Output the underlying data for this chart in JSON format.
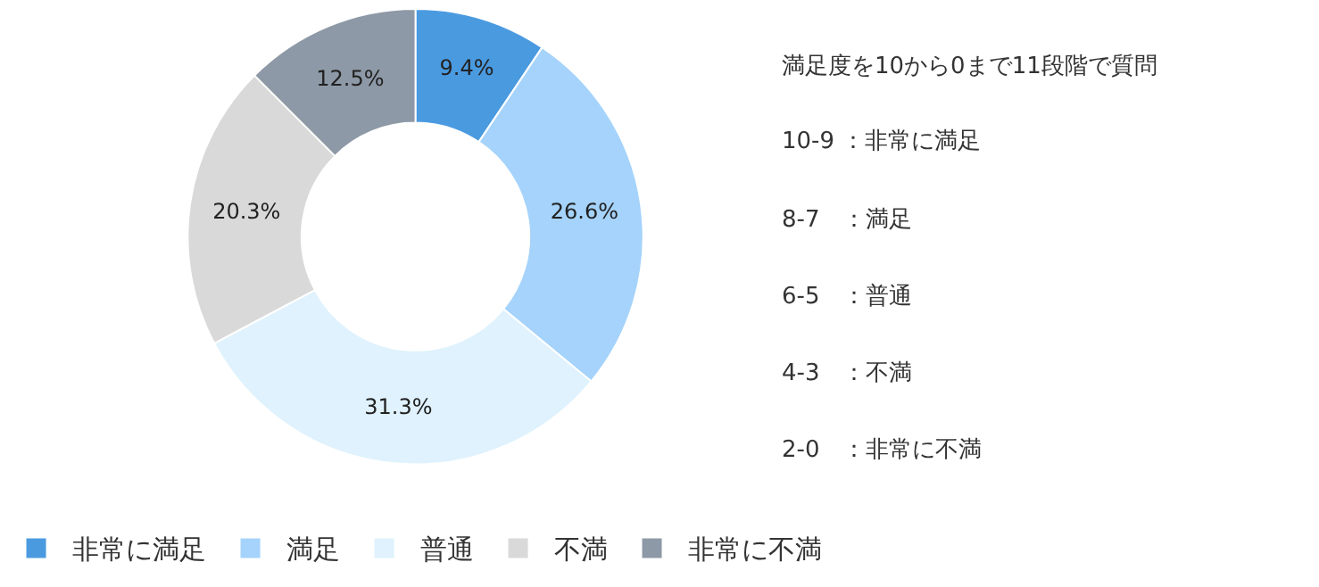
{
  "chart_data": {
    "type": "donut",
    "categories": [
      "非常に満足",
      "満足",
      "普通",
      "不満",
      "非常に不満"
    ],
    "values": [
      9.4,
      26.6,
      31.3,
      20.3,
      12.5
    ],
    "colors": [
      "#4a9ae0",
      "#a5d3fb",
      "#dff2fd",
      "#d9d9d9",
      "#8d99a6"
    ],
    "value_labels": [
      "9.4%",
      "26.6%",
      "31.3%",
      "20.3%",
      "12.5%"
    ],
    "legend": "bottom",
    "annotations": [
      "満足度を10から0まで11段階で質問",
      "10-9 ：非常に満足",
      "8-7　：満足",
      "6-5　：普通",
      "4-3　：不満",
      "2-0　：非常に不満"
    ]
  }
}
